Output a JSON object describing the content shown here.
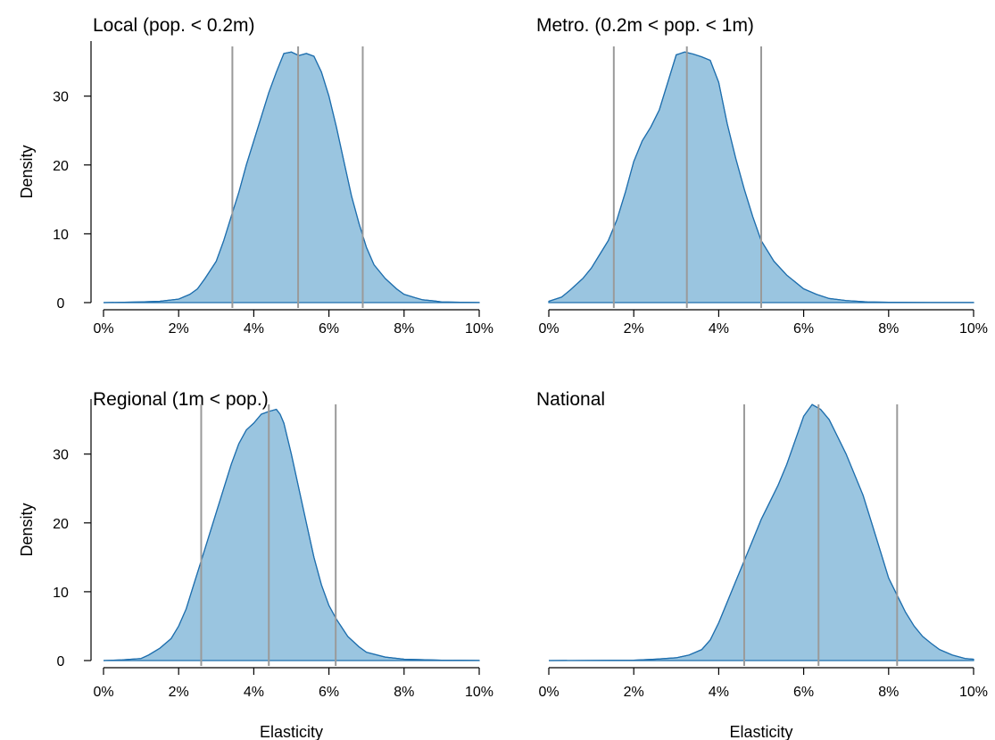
{
  "figure": {
    "colors": {
      "fill": "#9ac5e0",
      "outline": "#1f6fae",
      "reference_lines": "#9a9a9a"
    }
  },
  "chart_data": [
    {
      "type": "area",
      "title": "Local (pop. < 0.2m)",
      "xlabel": "",
      "ylabel": "Density",
      "xlim": [
        0,
        0.1
      ],
      "ylim": [
        0,
        38
      ],
      "x_ticks": [
        0,
        0.02,
        0.04,
        0.06,
        0.08,
        0.1
      ],
      "x_tick_labels": [
        "0%",
        "2%",
        "4%",
        "6%",
        "8%",
        "10%"
      ],
      "y_ticks": [
        0,
        10,
        20,
        30
      ],
      "y_tick_labels": [
        "0",
        "10",
        "20",
        "30"
      ],
      "reference_lines": [
        0.0343,
        0.0518,
        0.069
      ],
      "x": [
        0,
        0.01,
        0.015,
        0.02,
        0.023,
        0.025,
        0.027,
        0.03,
        0.032,
        0.034,
        0.036,
        0.038,
        0.04,
        0.042,
        0.044,
        0.046,
        0.048,
        0.05,
        0.052,
        0.054,
        0.056,
        0.058,
        0.06,
        0.062,
        0.064,
        0.066,
        0.068,
        0.07,
        0.072,
        0.075,
        0.078,
        0.08,
        0.083,
        0.085,
        0.088,
        0.09,
        0.095,
        0.1
      ],
      "y": [
        0,
        0.1,
        0.2,
        0.5,
        1.2,
        2,
        3.5,
        6,
        9,
        12.5,
        16,
        20,
        23.5,
        27,
        30.5,
        33.5,
        36.2,
        36.4,
        35.9,
        36.2,
        35.8,
        33.5,
        30,
        25.5,
        20.5,
        15.5,
        11.5,
        8,
        5.5,
        3.5,
        2,
        1.2,
        0.7,
        0.4,
        0.25,
        0.1,
        0.05,
        0.02
      ]
    },
    {
      "type": "area",
      "title": "Metro. (0.2m < pop. < 1m)",
      "xlabel": "",
      "ylabel": "",
      "xlim": [
        0,
        0.1
      ],
      "ylim": [
        0,
        38
      ],
      "x_ticks": [
        0,
        0.02,
        0.04,
        0.06,
        0.08,
        0.1
      ],
      "x_tick_labels": [
        "0%",
        "2%",
        "4%",
        "6%",
        "8%",
        "10%"
      ],
      "y_ticks": [
        0,
        10,
        20,
        30
      ],
      "reference_lines": [
        0.0153,
        0.0325,
        0.05
      ],
      "x": [
        0,
        0.003,
        0.005,
        0.008,
        0.01,
        0.012,
        0.014,
        0.016,
        0.018,
        0.02,
        0.022,
        0.024,
        0.026,
        0.028,
        0.03,
        0.032,
        0.034,
        0.036,
        0.038,
        0.04,
        0.042,
        0.044,
        0.046,
        0.048,
        0.05,
        0.053,
        0.056,
        0.06,
        0.063,
        0.066,
        0.07,
        0.075,
        0.08,
        0.09,
        0.1
      ],
      "y": [
        0.2,
        0.8,
        1.8,
        3.5,
        5,
        7,
        9,
        12,
        16,
        20.5,
        23.5,
        25.5,
        28,
        32,
        36,
        36.4,
        36.1,
        35.7,
        35.2,
        32,
        26,
        21,
        16.5,
        12.5,
        9,
        6,
        4,
        2,
        1.2,
        0.6,
        0.3,
        0.1,
        0.05,
        0.02,
        0.02
      ]
    },
    {
      "type": "area",
      "title": "Regional (1m < pop.)",
      "xlabel": "Elasticity",
      "ylabel": "Density",
      "xlim": [
        0,
        0.1
      ],
      "ylim": [
        0,
        38
      ],
      "x_ticks": [
        0,
        0.02,
        0.04,
        0.06,
        0.08,
        0.1
      ],
      "x_tick_labels": [
        "0%",
        "2%",
        "4%",
        "6%",
        "8%",
        "10%"
      ],
      "y_ticks": [
        0,
        10,
        20,
        30
      ],
      "y_tick_labels": [
        "0",
        "10",
        "20",
        "30"
      ],
      "reference_lines": [
        0.026,
        0.044,
        0.0618
      ],
      "x": [
        0,
        0.005,
        0.01,
        0.012,
        0.015,
        0.018,
        0.02,
        0.022,
        0.024,
        0.026,
        0.028,
        0.03,
        0.032,
        0.034,
        0.036,
        0.038,
        0.04,
        0.042,
        0.044,
        0.046,
        0.047,
        0.048,
        0.05,
        0.052,
        0.054,
        0.056,
        0.058,
        0.06,
        0.062,
        0.065,
        0.068,
        0.07,
        0.075,
        0.08,
        0.09,
        0.1
      ],
      "y": [
        0,
        0.1,
        0.3,
        0.8,
        1.8,
        3.2,
        5,
        7.5,
        11,
        14.5,
        18,
        21.5,
        25,
        28.5,
        31.5,
        33.5,
        34.5,
        35.8,
        36.2,
        36.5,
        35.8,
        34.5,
        30,
        25,
        20,
        15,
        11,
        8,
        6,
        3.5,
        2,
        1.2,
        0.5,
        0.2,
        0.05,
        0.02
      ]
    },
    {
      "type": "area",
      "title": "National",
      "xlabel": "Elasticity",
      "ylabel": "",
      "xlim": [
        0,
        0.1
      ],
      "ylim": [
        0,
        38
      ],
      "x_ticks": [
        0,
        0.02,
        0.04,
        0.06,
        0.08,
        0.1
      ],
      "x_tick_labels": [
        "0%",
        "2%",
        "4%",
        "6%",
        "8%",
        "10%"
      ],
      "y_ticks": [
        0,
        10,
        20,
        30
      ],
      "reference_lines": [
        0.046,
        0.0635,
        0.082
      ],
      "x": [
        0,
        0.01,
        0.02,
        0.025,
        0.03,
        0.033,
        0.036,
        0.038,
        0.04,
        0.042,
        0.044,
        0.046,
        0.048,
        0.05,
        0.052,
        0.054,
        0.056,
        0.058,
        0.06,
        0.062,
        0.064,
        0.066,
        0.068,
        0.07,
        0.072,
        0.074,
        0.076,
        0.078,
        0.08,
        0.082,
        0.084,
        0.086,
        0.088,
        0.09,
        0.092,
        0.095,
        0.098,
        0.1
      ],
      "y": [
        0,
        0.02,
        0.05,
        0.2,
        0.4,
        0.8,
        1.6,
        3,
        5.5,
        8.5,
        11.5,
        14.5,
        17.5,
        20.5,
        23,
        25.5,
        28.5,
        32,
        35.5,
        37.2,
        36.5,
        35,
        32.5,
        30,
        27,
        24,
        20,
        16,
        12,
        9.5,
        7,
        5,
        3.5,
        2.5,
        1.6,
        0.8,
        0.3,
        0.2
      ]
    }
  ]
}
